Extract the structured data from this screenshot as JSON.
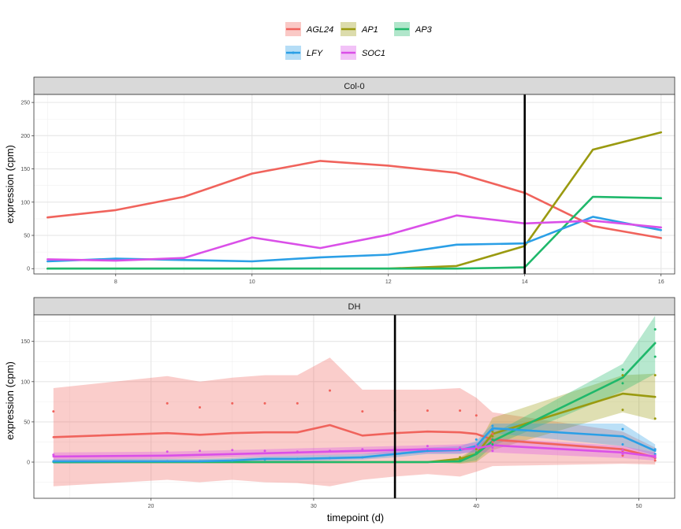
{
  "chart_data": {
    "type": "line",
    "ylabel": "expression (cpm)",
    "xlabel": "timepoint (d)",
    "legend": {
      "position": "top",
      "items": [
        {
          "name": "AGL24",
          "color": "#F0635C"
        },
        {
          "name": "AP1",
          "color": "#9A9A10"
        },
        {
          "name": "AP3",
          "color": "#1FB86B"
        },
        {
          "name": "LFY",
          "color": "#2B9FE6"
        },
        {
          "name": "SOC1",
          "color": "#DA50E8"
        }
      ]
    },
    "panels": [
      {
        "strip": "Col-0",
        "xlim": [
          6.8,
          16.2
        ],
        "ylim": [
          -8,
          262
        ],
        "xticks": [
          8,
          10,
          12,
          14,
          16
        ],
        "yticks": [
          0,
          50,
          100,
          150,
          200,
          250
        ],
        "vline": 14,
        "grid": true,
        "series": [
          {
            "name": "AGL24",
            "x": [
              7,
              8,
              9,
              10,
              11,
              12,
              13,
              14,
              15,
              16
            ],
            "y": [
              77,
              88,
              108,
              143,
              162,
              155,
              144,
              114,
              64,
              46
            ]
          },
          {
            "name": "AP1",
            "x": [
              7,
              8,
              9,
              10,
              11,
              12,
              13,
              14,
              15,
              16
            ],
            "y": [
              0,
              0,
              0,
              0,
              0,
              0,
              4,
              34,
              179,
              205
            ]
          },
          {
            "name": "AP3",
            "x": [
              7,
              8,
              9,
              10,
              11,
              12,
              13,
              14,
              15,
              16
            ],
            "y": [
              0,
              0,
              0,
              0,
              0,
              0,
              0,
              2,
              108,
              106
            ]
          },
          {
            "name": "LFY",
            "x": [
              7,
              8,
              9,
              10,
              11,
              12,
              13,
              14,
              15,
              16
            ],
            "y": [
              11,
              15,
              13,
              11,
              17,
              21,
              36,
              38,
              78,
              58
            ]
          },
          {
            "name": "SOC1",
            "x": [
              7,
              8,
              9,
              10,
              11,
              12,
              13,
              14,
              15,
              16
            ],
            "y": [
              14,
              12,
              16,
              47,
              31,
              51,
              80,
              68,
              72,
              62
            ]
          }
        ]
      },
      {
        "strip": "DH",
        "xlim": [
          12.8,
          52.2
        ],
        "ylim": [
          -45,
          183
        ],
        "xticks": [
          20,
          30,
          40,
          50
        ],
        "yticks": [
          0,
          50,
          100,
          150
        ],
        "vline": 35,
        "grid": true,
        "bands": [
          {
            "name": "AGL24",
            "x": [
              14,
              21,
              23,
              25,
              27,
              29,
              31,
              33,
              35,
              37,
              39,
              40,
              41,
              49,
              51
            ],
            "ymin": [
              -30,
              -22,
              -25,
              -22,
              -25,
              -26,
              -30,
              -22,
              -18,
              -15,
              -18,
              -12,
              -5,
              -2,
              -3
            ],
            "ymax": [
              92,
              107,
              100,
              105,
              108,
              108,
              130,
              90,
              90,
              90,
              92,
              80,
              62,
              38,
              18
            ]
          },
          {
            "name": "AP1",
            "x": [
              14,
              21,
              23,
              25,
              27,
              29,
              31,
              33,
              35,
              37,
              39,
              40,
              41,
              49,
              51
            ],
            "ymin": [
              0,
              0,
              0,
              0,
              0,
              0,
              0,
              0,
              0,
              0,
              -2,
              0,
              15,
              62,
              52
            ],
            "ymax": [
              0,
              0,
              0,
              0,
              0,
              0,
              0,
              0,
              0,
              0,
              6,
              18,
              55,
              108,
              110
            ]
          },
          {
            "name": "AP3",
            "x": [
              14,
              21,
              23,
              25,
              27,
              29,
              31,
              33,
              35,
              37,
              39,
              40,
              41,
              49,
              51
            ],
            "ymin": [
              0,
              0,
              0,
              0,
              0,
              0,
              0,
              0,
              0,
              0,
              -1,
              2,
              20,
              88,
              110
            ],
            "ymax": [
              0,
              0,
              0,
              0,
              0,
              0,
              0,
              0,
              0,
              0,
              3,
              18,
              35,
              122,
              182
            ]
          },
          {
            "name": "LFY",
            "x": [
              14,
              21,
              23,
              25,
              27,
              29,
              31,
              33,
              35,
              37,
              39,
              40,
              41,
              49,
              51
            ],
            "ymin": [
              -2,
              -1,
              -1,
              0,
              1,
              1,
              2,
              3,
              6,
              10,
              10,
              14,
              36,
              20,
              8
            ],
            "ymax": [
              4,
              4,
              4,
              5,
              7,
              8,
              9,
              10,
              14,
              18,
              20,
              26,
              48,
              48,
              22
            ]
          },
          {
            "name": "SOC1",
            "x": [
              14,
              21,
              23,
              25,
              27,
              29,
              31,
              33,
              35,
              37,
              39,
              40,
              41,
              49,
              51
            ],
            "ymin": [
              2,
              4,
              5,
              6,
              7,
              8,
              9,
              10,
              10,
              11,
              11,
              12,
              12,
              5,
              2
            ],
            "ymax": [
              12,
              13,
              14,
              15,
              16,
              17,
              18,
              19,
              20,
              21,
              22,
              24,
              30,
              20,
              12
            ]
          }
        ],
        "series": [
          {
            "name": "AGL24",
            "x": [
              14,
              21,
              23,
              25,
              27,
              29,
              31,
              33,
              35,
              37,
              39,
              40,
              41,
              49,
              51
            ],
            "y": [
              31,
              36,
              34,
              36,
              37,
              37,
              46,
              33,
              36,
              38,
              37,
              35,
              28,
              16,
              6
            ]
          },
          {
            "name": "AP1",
            "x": [
              14,
              21,
              23,
              25,
              27,
              29,
              31,
              33,
              35,
              37,
              39,
              40,
              41,
              49,
              51
            ],
            "y": [
              0,
              0,
              0,
              0,
              0,
              0,
              0,
              0,
              0,
              0,
              4,
              10,
              35,
              85,
              81
            ]
          },
          {
            "name": "AP3",
            "x": [
              14,
              21,
              23,
              25,
              27,
              29,
              31,
              33,
              35,
              37,
              39,
              40,
              41,
              49,
              51
            ],
            "y": [
              0,
              0,
              0,
              0,
              0,
              0,
              0,
              0,
              0,
              0,
              1,
              10,
              26,
              105,
              148
            ]
          },
          {
            "name": "LFY",
            "x": [
              14,
              21,
              23,
              25,
              27,
              29,
              31,
              33,
              35,
              37,
              39,
              40,
              41,
              49,
              51
            ],
            "y": [
              1,
              1,
              1,
              2,
              4,
              4,
              5,
              6,
              10,
              14,
              15,
              20,
              42,
              32,
              14
            ]
          },
          {
            "name": "SOC1",
            "x": [
              14,
              21,
              23,
              25,
              27,
              29,
              31,
              33,
              35,
              37,
              39,
              40,
              41,
              49,
              51
            ],
            "y": [
              7,
              8,
              9,
              10,
              11,
              12,
              13,
              14,
              15,
              16,
              16,
              17,
              21,
              12,
              7
            ]
          }
        ],
        "points": [
          {
            "name": "AGL24",
            "x": [
              14,
              21,
              23,
              25,
              27,
              29,
              31,
              33,
              35,
              37,
              39,
              40,
              41,
              41,
              49,
              49,
              51,
              51
            ],
            "y": [
              63,
              73,
              68,
              73,
              73,
              73,
              89,
              63,
              64,
              64,
              64,
              58,
              35,
              25,
              14,
              8,
              5,
              2
            ]
          },
          {
            "name": "AP1",
            "x": [
              39,
              40,
              41,
              41,
              49,
              49,
              51,
              51
            ],
            "y": [
              6,
              16,
              38,
              32,
              108,
              65,
              108,
              54
            ]
          },
          {
            "name": "AP3",
            "x": [
              39,
              40,
              41,
              41,
              49,
              49,
              51,
              51
            ],
            "y": [
              2,
              12,
              28,
              22,
              115,
              98,
              165,
              131
            ]
          },
          {
            "name": "LFY",
            "x": [
              14,
              21,
              23,
              25,
              27,
              29,
              31,
              33,
              35,
              37,
              39,
              40,
              41,
              41,
              49,
              49,
              51,
              51
            ],
            "y": [
              1,
              1,
              1,
              2,
              3,
              4,
              5,
              6,
              11,
              14,
              16,
              28,
              45,
              40,
              41,
              22,
              16,
              10
            ]
          },
          {
            "name": "SOC1",
            "x": [
              14,
              21,
              23,
              25,
              27,
              29,
              31,
              33,
              35,
              37,
              39,
              40,
              41,
              41,
              49,
              49,
              51,
              51
            ],
            "y": [
              9,
              13,
              14,
              15,
              14,
              13,
              14,
              16,
              17,
              20,
              18,
              20,
              18,
              14,
              15,
              10,
              8,
              6
            ]
          }
        ]
      }
    ]
  }
}
